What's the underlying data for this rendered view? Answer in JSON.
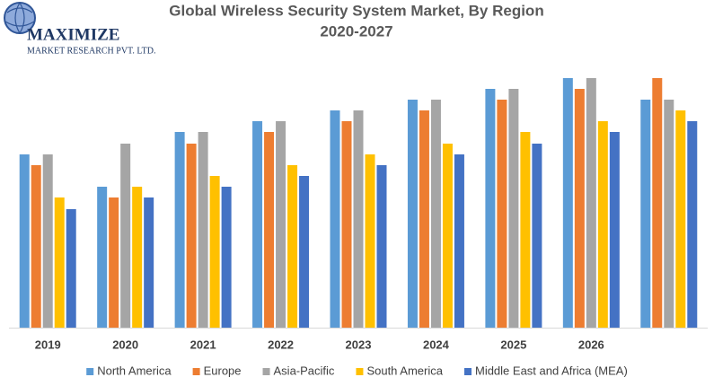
{
  "logo": {
    "name": "MAXIMIZE",
    "tagline": "MARKET RESEARCH PVT. LTD."
  },
  "chart_data": {
    "type": "bar",
    "title": "Global Wireless Security System Market, By Region",
    "subtitle": "2020-2027",
    "categories": [
      "2019",
      "2020",
      "2021",
      "2022",
      "2023",
      "2024",
      "2025",
      "2026",
      null
    ],
    "ylim": [
      0,
      300
    ],
    "series": [
      {
        "name": "North America",
        "color": "#5b9bd5",
        "values": [
          193,
          157,
          218,
          230,
          242,
          254,
          266,
          278,
          254
        ]
      },
      {
        "name": "Europe",
        "color": "#ed7d31",
        "values": [
          181,
          145,
          205,
          218,
          230,
          242,
          254,
          266,
          278
        ]
      },
      {
        "name": "Asia-Pacific",
        "color": "#a5a5a5",
        "values": [
          193,
          205,
          218,
          230,
          242,
          254,
          266,
          278,
          254
        ]
      },
      {
        "name": "South America",
        "color": "#ffc000",
        "values": [
          145,
          157,
          169,
          181,
          193,
          205,
          218,
          230,
          242
        ]
      },
      {
        "name": "Middle East and Africa (MEA)",
        "color": "#4472c4",
        "values": [
          132,
          145,
          157,
          169,
          181,
          193,
          205,
          218,
          230
        ]
      }
    ],
    "legend": "bottom"
  }
}
